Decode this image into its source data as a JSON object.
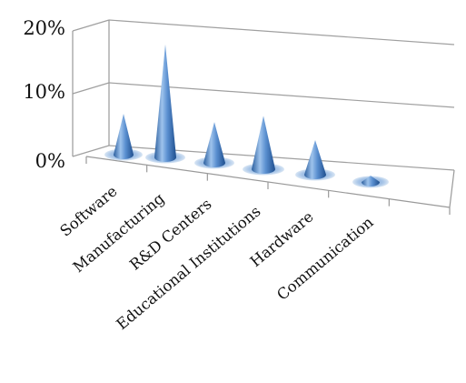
{
  "chart_data": {
    "type": "bar",
    "shape": "cone",
    "categories": [
      "Software",
      "Manufacturing",
      "R&D Centers",
      "Educational Institutions",
      "Hardware",
      "Communication"
    ],
    "values": [
      6.5,
      18.0,
      6.5,
      8.5,
      5.5,
      1.0
    ],
    "y_ticks": [
      "0%",
      "10%",
      "20%"
    ],
    "ylim": [
      0,
      20
    ],
    "grid": true,
    "colors": {
      "cone": "#4f86c6",
      "cone_dark": "#1f4f8e",
      "cone_light": "#bcd7f3",
      "grid": "#a0a0a0"
    }
  }
}
